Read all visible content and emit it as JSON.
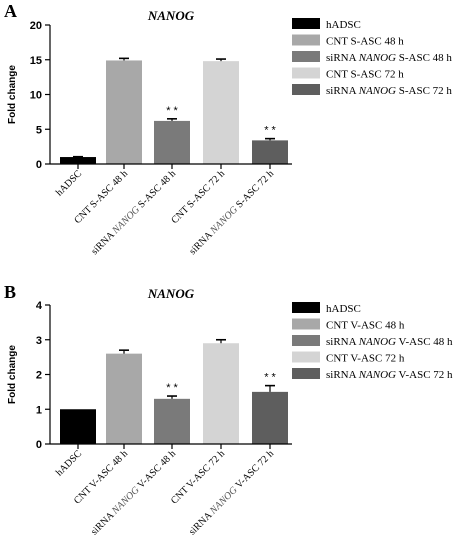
{
  "chart_data": [
    {
      "type": "bar",
      "panel": "A",
      "title": "NANOG",
      "ylabel": "Fold change",
      "ylim": [
        0,
        20
      ],
      "yticks": [
        0,
        5,
        10,
        15,
        20
      ],
      "categories": [
        [
          {
            "t": "hADSC"
          }
        ],
        [
          {
            "t": "CNT S-ASC 48 h"
          }
        ],
        [
          {
            "t": "siRNA "
          },
          {
            "t": "NANOG",
            "i": true
          },
          {
            "t": " S-ASC 48 h"
          }
        ],
        [
          {
            "t": "CNT S-ASC 72 h"
          }
        ],
        [
          {
            "t": "siRNA "
          },
          {
            "t": "NANOG",
            "i": true
          },
          {
            "t": " S-ASC 72 h"
          }
        ]
      ],
      "values": [
        1.0,
        14.9,
        6.2,
        14.8,
        3.4
      ],
      "errors": [
        0.05,
        0.3,
        0.3,
        0.3,
        0.25
      ],
      "significance": [
        "",
        "",
        "* *",
        "",
        "* *"
      ],
      "colors": [
        "#000000",
        "#a8a8a8",
        "#7a7a7a",
        "#d4d4d4",
        "#5e5e5e"
      ],
      "legend": {
        "placement": "right",
        "entries": [
          [
            {
              "t": "hADSC"
            }
          ],
          [
            {
              "t": "CNT S-ASC 48 h"
            }
          ],
          [
            {
              "t": "siRNA "
            },
            {
              "t": "NANOG",
              "i": true
            },
            {
              "t": " S-ASC 48 h"
            }
          ],
          [
            {
              "t": "CNT S-ASC 72 h"
            }
          ],
          [
            {
              "t": "siRNA "
            },
            {
              "t": "NANOG",
              "i": true
            },
            {
              "t": " S-ASC 72 h"
            }
          ]
        ]
      }
    },
    {
      "type": "bar",
      "panel": "B",
      "title": "NANOG",
      "ylabel": "Fold change",
      "ylim": [
        0,
        4
      ],
      "yticks": [
        0,
        1,
        2,
        3,
        4
      ],
      "categories": [
        [
          {
            "t": "hADSC"
          }
        ],
        [
          {
            "t": "CNT V-ASC 48 h"
          }
        ],
        [
          {
            "t": "siRNA "
          },
          {
            "t": "NANOG",
            "i": true
          },
          {
            "t": " V-ASC 48 h"
          }
        ],
        [
          {
            "t": "CNT V-ASC 72 h"
          }
        ],
        [
          {
            "t": "siRNA "
          },
          {
            "t": "NANOG",
            "i": true
          },
          {
            "t": " V-ASC 72 h"
          }
        ]
      ],
      "values": [
        1.0,
        2.6,
        1.3,
        2.9,
        1.5
      ],
      "errors": [
        0.0,
        0.1,
        0.08,
        0.1,
        0.18
      ],
      "significance": [
        "",
        "",
        "* *",
        "",
        "* *"
      ],
      "colors": [
        "#000000",
        "#a8a8a8",
        "#7a7a7a",
        "#d4d4d4",
        "#5e5e5e"
      ],
      "legend": {
        "placement": "right",
        "entries": [
          [
            {
              "t": "hADSC"
            }
          ],
          [
            {
              "t": "CNT V-ASC 48 h"
            }
          ],
          [
            {
              "t": "siRNA "
            },
            {
              "t": "NANOG",
              "i": true
            },
            {
              "t": " V-ASC 48 h"
            }
          ],
          [
            {
              "t": "CNT V-ASC 72 h"
            }
          ],
          [
            {
              "t": "siRNA "
            },
            {
              "t": "NANOG",
              "i": true
            },
            {
              "t": " V-ASC 72 h"
            }
          ]
        ]
      }
    }
  ]
}
